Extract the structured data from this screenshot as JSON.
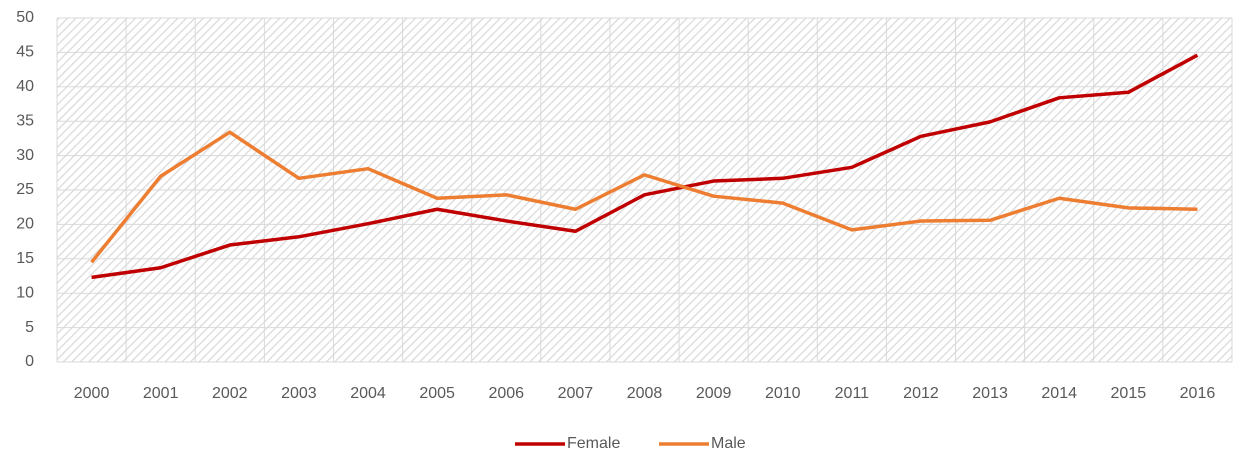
{
  "chart_data": {
    "type": "line",
    "categories": [
      "2000",
      "2001",
      "2002",
      "2003",
      "2004",
      "2005",
      "2006",
      "2007",
      "2008",
      "2009",
      "2010",
      "2011",
      "2012",
      "2013",
      "2014",
      "2015",
      "2016"
    ],
    "series": [
      {
        "name": "Female",
        "color": "#c00000",
        "values": [
          12.3,
          13.7,
          17.0,
          18.2,
          20.1,
          22.2,
          20.5,
          19.0,
          24.3,
          26.3,
          26.7,
          28.3,
          32.8,
          34.9,
          38.4,
          39.2,
          44.6
        ]
      },
      {
        "name": "Male",
        "color": "#ed7d31",
        "values": [
          14.5,
          27.0,
          33.4,
          26.7,
          28.1,
          23.8,
          24.3,
          22.2,
          27.2,
          24.1,
          23.1,
          19.2,
          20.5,
          20.6,
          23.8,
          22.4,
          22.2
        ]
      }
    ],
    "ylim": [
      0,
      50
    ],
    "yticks": [
      0,
      5,
      10,
      15,
      20,
      25,
      30,
      35,
      40,
      45,
      50
    ],
    "grid": true,
    "legend": "bottom"
  }
}
